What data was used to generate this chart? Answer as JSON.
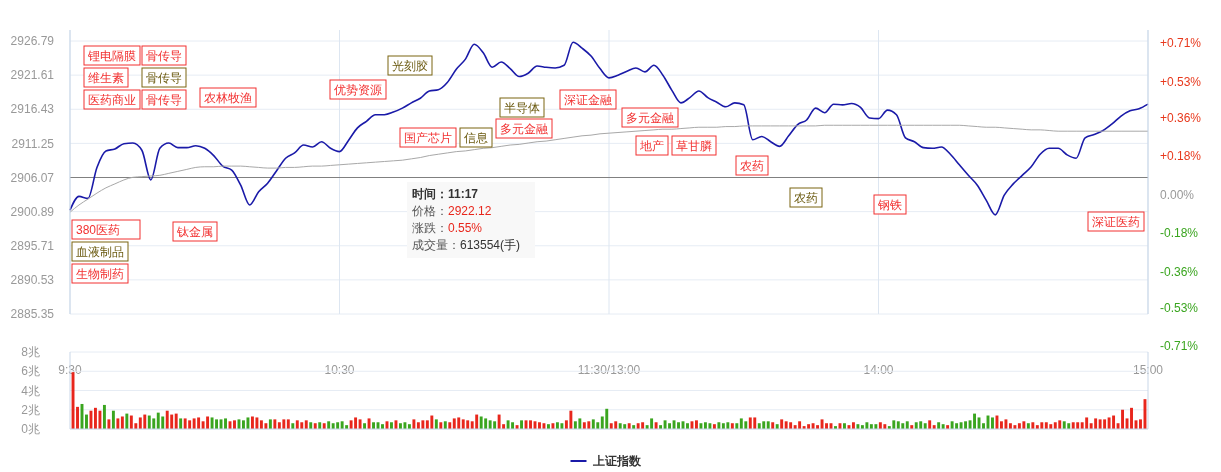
{
  "chart_data": [
    {
      "type": "line",
      "categories": [
        "9:30",
        null,
        null,
        null,
        null,
        null,
        null,
        null,
        null,
        null,
        null,
        null,
        null,
        null,
        null,
        null,
        null,
        null,
        null,
        null,
        null,
        null,
        null,
        null,
        null,
        null,
        null,
        null,
        null,
        null,
        "10:30",
        null,
        null,
        null,
        null,
        null,
        null,
        null,
        null,
        null,
        null,
        null,
        null,
        null,
        null,
        null,
        null,
        null,
        null,
        null,
        null,
        null,
        null,
        null,
        null,
        null,
        null,
        null,
        null,
        null,
        "11:30/13:00",
        null,
        null,
        null,
        null,
        null,
        null,
        null,
        null,
        null,
        null,
        null,
        null,
        null,
        null,
        null,
        null,
        null,
        null,
        null,
        null,
        null,
        null,
        null,
        null,
        null,
        null,
        null,
        null,
        null,
        "14:00",
        null,
        null,
        null,
        null,
        null,
        null,
        null,
        null,
        null,
        null,
        null,
        null,
        null,
        null,
        null,
        null,
        null,
        null,
        null,
        null,
        null,
        null,
        null,
        null,
        null,
        null,
        null,
        null,
        null,
        "15:00"
      ],
      "ylim": [
        2885.35,
        2926.79
      ],
      "yticks": [
        2885.35,
        2890.53,
        2895.71,
        2900.89,
        2906.07,
        2911.25,
        2916.43,
        2921.61,
        2926.79
      ],
      "y2lim": [
        -0.71,
        0.71
      ],
      "y2ticks": [
        {
          "value": -0.71,
          "label": "-0.71%"
        },
        {
          "value": -0.53,
          "label": "-0.53%"
        },
        {
          "value": -0.36,
          "label": "-0.36%"
        },
        {
          "value": -0.18,
          "label": "-0.18%"
        },
        {
          "value": 0,
          "label": "0.00%"
        },
        {
          "value": 0.18,
          "label": "+0.18%"
        },
        {
          "value": 0.36,
          "label": "+0.36%"
        },
        {
          "value": 0.53,
          "label": "+0.53%"
        },
        {
          "value": 0.71,
          "label": "+0.71%"
        }
      ],
      "grid": true,
      "legend": "bottom",
      "ref_lines": [
        {
          "axis": "y",
          "value": 2906.07,
          "color": "#808080"
        }
      ],
      "series": [
        {
          "name": "上证指数",
          "color": "#1a1aa8",
          "values": [
            2901.1,
            2903.2,
            2902.9,
            2907.6,
            2910.1,
            2910.4,
            2911.2,
            2911.3,
            2910.2,
            2905.7,
            2910.5,
            2911.3,
            2910.6,
            2910.6,
            2910.9,
            2910.5,
            2909.4,
            2907.8,
            2907.2,
            2904.9,
            2901.9,
            2903.9,
            2905.2,
            2907.1,
            2909.0,
            2909.8,
            2911.0,
            2910.7,
            2911.5,
            2910.5,
            2910.0,
            2911.7,
            2913.6,
            2914.6,
            2915.6,
            2915.6,
            2916.0,
            2916.6,
            2917.4,
            2918.1,
            2919.2,
            2919.4,
            2920.5,
            2922.5,
            2924.0,
            2926.3,
            2925.0,
            2922.8,
            2923.6,
            2922.6,
            2921.4,
            2921.9,
            2923.0,
            2922.8,
            2922.7,
            2923.1,
            2926.6,
            2925.7,
            2924.5,
            2922.6,
            2921.2,
            2921.6,
            2922.2,
            2922.7,
            2922.1,
            2923.1,
            2921.6,
            2919.3,
            2917.4,
            2918.2,
            2919.2,
            2918.2,
            2917.5,
            2916.8,
            2917.4,
            2917.1,
            2911.8,
            2912.3,
            2911.5,
            2910.8,
            2912.4,
            2914.1,
            2914.8,
            2916.6,
            2915.9,
            2917.2,
            2917.1,
            2917.3,
            2916.7,
            2915.1,
            2915.0,
            2916.3,
            2915.6,
            2912.1,
            2911.5,
            2910.6,
            2910.5,
            2910.7,
            2909.6,
            2908.0,
            2906.4,
            2904.9,
            2902.6,
            2900.4,
            2903.4,
            2905.1,
            2906.4,
            2907.7,
            2909.6,
            2910.5,
            2910.5,
            2909.5,
            2909.0,
            2912.1,
            2912.6,
            2913.2,
            2914.2,
            2915.4,
            2916.2,
            2916.5,
            2917.2
          ]
        },
        {
          "color": "#a8a8a8",
          "values": [
            2900.8,
            2901.9,
            2902.8,
            2903.7,
            2904.5,
            2905.1,
            2905.7,
            2906.1,
            2906.2,
            2906.3,
            2906.4,
            2906.7,
            2907.0,
            2907.3,
            2907.6,
            2907.7,
            2907.7,
            2907.8,
            2907.8,
            2907.8,
            2907.7,
            2907.6,
            2907.5,
            2907.5,
            2907.6,
            2907.6,
            2907.7,
            2907.8,
            2907.8,
            2907.9,
            2908.0,
            2908.1,
            2908.2,
            2908.3,
            2908.4,
            2908.5,
            2908.6,
            2908.7,
            2908.9,
            2909.1,
            2909.4,
            2909.6,
            2909.8,
            2910.0,
            2910.1,
            2910.3,
            2910.5,
            2910.6,
            2910.8,
            2911.0,
            2911.1,
            2911.3,
            2911.5,
            2911.6,
            2911.8,
            2912.0,
            2912.2,
            2912.4,
            2912.5,
            2912.7,
            2912.8,
            2912.9,
            2913.0,
            2913.1,
            2913.2,
            2913.3,
            2913.4,
            2913.4,
            2913.5,
            2913.6,
            2913.7,
            2913.7,
            2913.7,
            2913.8,
            2913.8,
            2913.9,
            2913.9,
            2913.9,
            2913.9,
            2913.9,
            2913.9,
            2913.9,
            2913.9,
            2913.9,
            2914.0,
            2914.0,
            2914.0,
            2914.0,
            2914.0,
            2914.0,
            2914.0,
            2914.0,
            2914.0,
            2914.0,
            2914.0,
            2914.0,
            2914.0,
            2914.0,
            2914.0,
            2914.0,
            2913.9,
            2913.8,
            2913.7,
            2913.7,
            2913.6,
            2913.5,
            2913.4,
            2913.3,
            2913.3,
            2913.2,
            2913.1,
            2913.1,
            2913.1,
            2913.1,
            2913.1,
            2913.1,
            2913.1,
            2913.1,
            2913.1,
            2913.1,
            2913.1
          ]
        }
      ],
      "annotations": [
        "锂电隔膜",
        "维生素",
        "医药商业",
        "骨传导",
        "骨传导",
        "骨传导",
        "380医药",
        "血液制品",
        "生物制药",
        "钛金属",
        "农林牧渔",
        "优势资源",
        "光刻胶",
        "国产芯片",
        "信息",
        "半导体",
        "多元金融",
        "深证金融",
        "多元金融",
        "地产",
        "草甘膦",
        "农药",
        "农药",
        "钢铁",
        "深证医药",
        "时间：11:17",
        "价格：2922.12",
        "涨跌：0.55%",
        "成交量：613554(手)"
      ]
    },
    {
      "type": "bar",
      "tick_labels": "y",
      "grid": "y",
      "ylim": [
        0,
        8
      ],
      "yticks": [
        {
          "value": 0,
          "label": "0兆"
        },
        {
          "value": 2,
          "label": "2兆"
        },
        {
          "value": 4,
          "label": "4兆"
        },
        {
          "value": 6,
          "label": "6兆"
        },
        {
          "value": 8,
          "label": "8兆"
        }
      ],
      "categories": [
        null,
        null,
        null,
        null,
        null,
        null,
        null,
        null,
        null,
        null,
        null,
        null,
        null,
        null,
        null,
        null,
        null,
        null,
        null,
        null,
        null,
        null,
        null,
        null,
        null,
        null,
        null,
        null,
        null,
        null,
        null,
        null,
        null,
        null,
        null,
        null,
        null,
        null,
        null,
        null,
        null,
        null,
        null,
        null,
        null,
        null,
        null,
        null,
        null,
        null,
        null,
        null,
        null,
        null,
        null,
        null,
        null,
        null,
        null,
        null,
        null,
        null,
        null,
        null,
        null,
        null,
        null,
        null,
        null,
        null,
        null,
        null,
        null,
        null,
        null,
        null,
        null,
        null,
        null,
        null,
        null,
        null,
        null,
        null,
        null,
        null,
        null,
        null,
        null,
        null,
        null,
        null,
        null,
        null,
        null,
        null,
        null,
        null,
        null,
        null,
        null,
        null,
        null,
        null,
        null,
        null,
        null,
        null,
        null,
        null,
        null,
        null,
        null,
        null,
        null,
        null,
        null,
        null,
        null,
        null,
        null,
        null,
        null,
        null,
        null,
        null,
        null,
        null,
        null,
        null,
        null,
        null,
        null,
        null,
        null,
        null,
        null,
        null,
        null,
        null,
        null,
        null,
        null,
        null,
        null,
        null,
        null,
        null,
        null,
        null,
        null,
        null,
        null,
        null,
        null,
        null,
        null,
        null,
        null,
        null,
        null,
        null,
        null,
        null,
        null,
        null,
        null,
        null,
        null,
        null,
        null,
        null,
        null,
        null,
        null,
        null,
        null,
        null,
        null,
        null,
        null,
        null,
        null,
        null,
        null,
        null,
        null,
        null,
        null,
        null,
        null,
        null,
        null,
        null,
        null,
        null,
        null,
        null,
        null,
        null,
        null,
        null,
        null,
        null,
        null,
        null,
        null,
        null,
        null,
        null,
        null,
        null,
        null,
        null,
        null,
        null,
        null,
        null,
        null,
        null,
        null,
        null,
        null,
        null,
        null,
        null,
        null,
        null,
        null,
        null,
        null,
        null,
        null,
        null,
        null,
        null,
        null,
        null,
        null,
        null
      ],
      "values": [
        5.9,
        2.3,
        2.6,
        1.5,
        1.9,
        2.2,
        1.9,
        2.5,
        1.0,
        1.9,
        1.1,
        1.3,
        1.6,
        1.4,
        0.6,
        1.2,
        1.5,
        1.4,
        1.1,
        1.7,
        1.3,
        1.9,
        1.5,
        1.6,
        1.1,
        1.1,
        0.9,
        1.1,
        1.2,
        0.8,
        1.3,
        1.2,
        1.0,
        1.0,
        1.1,
        0.8,
        0.9,
        1.0,
        0.9,
        1.2,
        1.3,
        1.2,
        0.9,
        0.6,
        1.0,
        1.0,
        0.7,
        1.0,
        1.0,
        0.6,
        0.9,
        0.7,
        0.9,
        0.7,
        0.6,
        0.7,
        0.6,
        0.8,
        0.6,
        0.7,
        0.8,
        0.4,
        0.9,
        1.2,
        1.0,
        0.6,
        1.1,
        0.7,
        0.7,
        0.5,
        0.8,
        0.7,
        0.9,
        0.6,
        0.7,
        0.5,
        1.0,
        0.7,
        0.9,
        0.9,
        1.4,
        1.0,
        0.7,
        0.8,
        0.7,
        1.1,
        1.2,
        1.0,
        0.9,
        0.8,
        1.5,
        1.3,
        1.1,
        0.9,
        0.8,
        1.5,
        0.5,
        0.9,
        0.7,
        0.4,
        0.9,
        0.9,
        0.9,
        0.8,
        0.7,
        0.6,
        0.5,
        0.6,
        0.7,
        0.6,
        0.9,
        1.9,
        0.8,
        1.1,
        0.7,
        0.8,
        1.0,
        0.7,
        1.3,
        2.1,
        0.6,
        0.8,
        0.6,
        0.5,
        0.6,
        0.4,
        0.6,
        0.7,
        0.4,
        1.1,
        0.7,
        0.4,
        0.9,
        0.6,
        0.9,
        0.7,
        0.8,
        0.6,
        0.8,
        0.9,
        0.6,
        0.7,
        0.6,
        0.5,
        0.7,
        0.6,
        0.7,
        0.6,
        0.6,
        1.1,
        0.8,
        1.2,
        1.2,
        0.6,
        0.8,
        0.8,
        0.7,
        0.5,
        1.0,
        0.8,
        0.7,
        0.4,
        0.8,
        0.3,
        0.5,
        0.6,
        0.4,
        1.0,
        0.6,
        0.6,
        0.3,
        0.6,
        0.6,
        0.4,
        0.7,
        0.5,
        0.4,
        0.7,
        0.5,
        0.5,
        0.7,
        0.5,
        0.3,
        0.9,
        0.8,
        0.6,
        0.8,
        0.4,
        0.7,
        0.8,
        0.6,
        0.9,
        0.4,
        0.7,
        0.5,
        0.4,
        0.8,
        0.6,
        0.7,
        0.8,
        0.9,
        1.6,
        1.2,
        0.6,
        1.4,
        1.2,
        1.4,
        0.8,
        1.0,
        0.6,
        0.4,
        0.6,
        0.8,
        0.6,
        0.7,
        0.4,
        0.7,
        0.7,
        0.5,
        0.7,
        0.9,
        0.8,
        0.6,
        0.7,
        0.7,
        0.7,
        1.2,
        0.6,
        1.1,
        1.0,
        1.0,
        1.2,
        1.4,
        0.6,
        2.0,
        1.1,
        2.2,
        0.9,
        1.0,
        3.1
      ],
      "colors": [
        "#e8261c",
        "#e8261c",
        "#3aa51f",
        "#3aa51f",
        "#e8261c",
        "#e8261c",
        "#e8261c",
        "#3aa51f",
        "#e8261c",
        "#3aa51f",
        "#e8261c",
        "#e8261c",
        "#3aa51f",
        "#e8261c",
        "#e8261c",
        "#e8261c",
        "#e8261c",
        "#3aa51f",
        "#3aa51f",
        "#3aa51f",
        "#3aa51f",
        "#e8261c",
        "#e8261c",
        "#e8261c",
        "#3aa51f",
        "#e8261c",
        "#e8261c",
        "#e8261c",
        "#e8261c",
        "#e8261c",
        "#e8261c",
        "#3aa51f",
        "#3aa51f",
        "#3aa51f",
        "#3aa51f",
        "#e8261c",
        "#e8261c",
        "#3aa51f",
        "#3aa51f",
        "#3aa51f",
        "#e8261c",
        "#e8261c",
        "#e8261c",
        "#e8261c",
        "#3aa51f",
        "#e8261c",
        "#e8261c",
        "#e8261c",
        "#e8261c",
        "#3aa51f",
        "#e8261c",
        "#e8261c",
        "#e8261c",
        "#3aa51f",
        "#e8261c",
        "#3aa51f",
        "#e8261c",
        "#3aa51f",
        "#3aa51f",
        "#3aa51f",
        "#3aa51f",
        "#3aa51f",
        "#e8261c",
        "#e8261c",
        "#e8261c",
        "#3aa51f",
        "#e8261c",
        "#3aa51f",
        "#3aa51f",
        "#3aa51f",
        "#e8261c",
        "#3aa51f",
        "#e8261c",
        "#3aa51f",
        "#3aa51f",
        "#3aa51f",
        "#e8261c",
        "#e8261c",
        "#e8261c",
        "#e8261c",
        "#e8261c",
        "#3aa51f",
        "#e8261c",
        "#3aa51f",
        "#e8261c",
        "#e8261c",
        "#e8261c",
        "#e8261c",
        "#e8261c",
        "#e8261c",
        "#e8261c",
        "#3aa51f",
        "#3aa51f",
        "#3aa51f",
        "#3aa51f",
        "#e8261c",
        "#e8261c",
        "#3aa51f",
        "#3aa51f",
        "#e8261c",
        "#3aa51f",
        "#e8261c",
        "#e8261c",
        "#e8261c",
        "#e8261c",
        "#e8261c",
        "#3aa51f",
        "#e8261c",
        "#3aa51f",
        "#3aa51f",
        "#e8261c",
        "#e8261c",
        "#3aa51f",
        "#3aa51f",
        "#e8261c",
        "#e8261c",
        "#3aa51f",
        "#3aa51f",
        "#3aa51f",
        "#3aa51f",
        "#e8261c",
        "#e8261c",
        "#3aa51f",
        "#3aa51f",
        "#e8261c",
        "#3aa51f",
        "#e8261c",
        "#e8261c",
        "#3aa51f",
        "#3aa51f",
        "#e8261c",
        "#3aa51f",
        "#3aa51f",
        "#3aa51f",
        "#3aa51f",
        "#3aa51f",
        "#3aa51f",
        "#3aa51f",
        "#e8261c",
        "#e8261c",
        "#3aa51f",
        "#3aa51f",
        "#3aa51f",
        "#e8261c",
        "#3aa51f",
        "#3aa51f",
        "#3aa51f",
        "#e8261c",
        "#3aa51f",
        "#3aa51f",
        "#3aa51f",
        "#e8261c",
        "#e8261c",
        "#3aa51f",
        "#3aa51f",
        "#3aa51f",
        "#e8261c",
        "#3aa51f",
        "#e8261c",
        "#e8261c",
        "#e8261c",
        "#e8261c",
        "#e8261c",
        "#e8261c",
        "#e8261c",
        "#e8261c",
        "#e8261c",
        "#e8261c",
        "#e8261c",
        "#e8261c",
        "#3aa51f",
        "#e8261c",
        "#3aa51f",
        "#e8261c",
        "#e8261c",
        "#3aa51f",
        "#3aa51f",
        "#3aa51f",
        "#3aa51f",
        "#3aa51f",
        "#e8261c",
        "#e8261c",
        "#3aa51f",
        "#3aa51f",
        "#3aa51f",
        "#3aa51f",
        "#3aa51f",
        "#e8261c",
        "#3aa51f",
        "#3aa51f",
        "#3aa51f",
        "#e8261c",
        "#e8261c",
        "#3aa51f",
        "#3aa51f",
        "#e8261c",
        "#3aa51f",
        "#3aa51f",
        "#3aa51f",
        "#3aa51f",
        "#3aa51f",
        "#3aa51f",
        "#3aa51f",
        "#3aa51f",
        "#3aa51f",
        "#3aa51f",
        "#e8261c",
        "#e8261c",
        "#e8261c",
        "#e8261c",
        "#e8261c",
        "#e8261c",
        "#e8261c",
        "#3aa51f",
        "#e8261c",
        "#e8261c",
        "#e8261c",
        "#e8261c",
        "#e8261c",
        "#e8261c",
        "#e8261c",
        "#3aa51f",
        "#3aa51f",
        "#e8261c",
        "#e8261c",
        "#e8261c",
        "#e8261c",
        "#e8261c",
        "#e8261c",
        "#e8261c",
        "#e8261c",
        "#e8261c",
        "#e8261c",
        "#e8261c",
        "#e8261c",
        "#e8261c",
        "#e8261c",
        "#e8261c",
        "#e8261c",
        "#e8261c"
      ]
    }
  ]
}
